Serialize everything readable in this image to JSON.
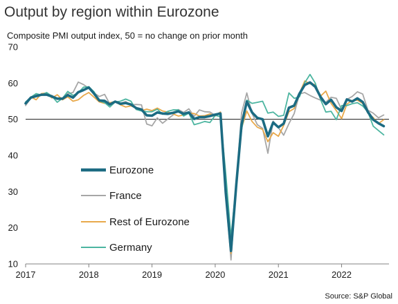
{
  "title": "Output by region within Eurozone",
  "subtitle": "Composite PMI output index, 50 = no change on prior month",
  "source": "Source: S&P Global",
  "chart_data": {
    "type": "line",
    "title": "Output by region within Eurozone",
    "ylabel": "Composite PMI output index, 50 = no change on prior month",
    "xlabel": "",
    "ylim": [
      10,
      70
    ],
    "yticks": [
      10,
      20,
      30,
      40,
      50,
      60,
      70
    ],
    "xticks": [
      "2017",
      "2018",
      "2019",
      "2020",
      "2021",
      "2022"
    ],
    "reference_line": 50,
    "grid": false,
    "legend_position": "lower-left",
    "x_start": "2017-01",
    "x_end": "2022-09",
    "frequency": "monthly",
    "series": [
      {
        "name": "Eurozone",
        "color": "#1c6b82",
        "emphasis": true,
        "values": [
          54.4,
          56.0,
          56.4,
          56.8,
          56.8,
          56.3,
          55.7,
          55.7,
          56.7,
          56.0,
          57.5,
          58.1,
          58.8,
          57.1,
          55.2,
          55.1,
          54.1,
          54.9,
          54.3,
          54.5,
          54.1,
          53.1,
          52.7,
          51.1,
          51.0,
          51.9,
          51.6,
          51.5,
          51.8,
          52.2,
          51.5,
          51.9,
          50.1,
          50.6,
          50.6,
          50.9,
          51.3,
          51.6,
          29.7,
          13.6,
          31.9,
          48.5,
          54.9,
          51.9,
          50.4,
          50.0,
          45.3,
          49.1,
          47.8,
          48.8,
          53.2,
          53.8,
          57.1,
          59.5,
          60.2,
          59.0,
          56.2,
          54.2,
          55.4,
          53.3,
          52.3,
          55.5,
          54.9,
          55.8,
          54.8,
          52.0,
          49.9,
          48.9,
          48.1
        ]
      },
      {
        "name": "France",
        "color": "#a6a6a6",
        "emphasis": false,
        "values": [
          53.8,
          55.9,
          56.8,
          56.6,
          56.9,
          56.6,
          55.6,
          55.6,
          57.1,
          57.4,
          60.3,
          59.6,
          58.6,
          57.3,
          56.3,
          56.9,
          54.2,
          55.0,
          54.4,
          54.9,
          54.0,
          54.1,
          54.0,
          48.7,
          48.2,
          50.4,
          48.9,
          50.1,
          51.2,
          52.7,
          51.9,
          52.9,
          50.8,
          52.6,
          52.1,
          52.0,
          51.1,
          52.0,
          28.9,
          11.1,
          32.1,
          51.7,
          57.3,
          51.6,
          48.5,
          47.5,
          40.6,
          49.5,
          47.7,
          45.6,
          48.8,
          51.6,
          57.0,
          57.4,
          56.6,
          55.9,
          55.3,
          54.7,
          56.1,
          55.8,
          52.7,
          55.5,
          56.3,
          57.6,
          57.0,
          52.5,
          51.7,
          50.4,
          51.2
        ]
      },
      {
        "name": "Rest of Eurozone",
        "color": "#e8a84a",
        "emphasis": false,
        "values": [
          54.5,
          56.2,
          55.4,
          57.1,
          57.3,
          55.9,
          56.8,
          55.4,
          56.2,
          55.0,
          55.4,
          56.6,
          57.4,
          56.1,
          54.8,
          54.4,
          54.6,
          54.9,
          54.0,
          53.4,
          53.7,
          53.1,
          52.4,
          52.8,
          52.4,
          53.1,
          52.3,
          52.0,
          51.5,
          50.9,
          51.2,
          51.7,
          51.6,
          50.9,
          51.0,
          51.5,
          50.9,
          52.0,
          29.5,
          12.9,
          31.5,
          47.5,
          52.3,
          49.4,
          47.8,
          47.2,
          43.8,
          46.3,
          45.3,
          48.3,
          52.1,
          53.0,
          57.2,
          60.6,
          59.8,
          59.6,
          56.4,
          57.8,
          54.4,
          52.4,
          50.2,
          54.2,
          55.2,
          55.3,
          54.4,
          51.7,
          50.5,
          48.8,
          49.9
        ]
      },
      {
        "name": "Germany",
        "color": "#4cb5a0",
        "emphasis": false,
        "values": [
          54.8,
          56.1,
          57.1,
          56.7,
          57.4,
          56.4,
          54.7,
          55.8,
          57.7,
          56.6,
          57.3,
          58.9,
          59.0,
          57.6,
          55.1,
          54.6,
          53.4,
          54.8,
          55.0,
          55.6,
          55.0,
          52.7,
          52.3,
          52.1,
          52.1,
          52.8,
          51.4,
          52.2,
          52.6,
          52.6,
          50.9,
          51.7,
          48.5,
          48.9,
          49.4,
          49.1,
          51.1,
          50.7,
          35.0,
          17.4,
          32.3,
          47.0,
          55.3,
          54.4,
          54.7,
          55.0,
          51.7,
          52.0,
          50.8,
          51.1,
          57.3,
          55.8,
          56.2,
          60.1,
          62.4,
          60.0,
          55.5,
          52.0,
          52.2,
          49.9,
          53.8,
          53.8,
          54.3,
          54.6,
          53.7,
          52.0,
          48.1,
          46.9,
          45.7
        ]
      }
    ]
  }
}
